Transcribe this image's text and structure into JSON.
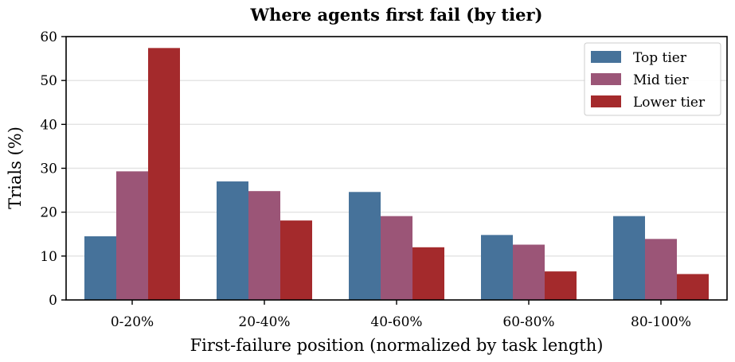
{
  "chart_data": {
    "type": "bar",
    "title": "Where agents first fail (by tier)",
    "xlabel": "First-failure position (normalized by task length)",
    "ylabel": "Trials (%)",
    "categories": [
      "0-20%",
      "20-40%",
      "40-60%",
      "60-80%",
      "80-100%"
    ],
    "series": [
      {
        "name": "Top tier",
        "color": "#46729a",
        "values": [
          14.5,
          27.0,
          24.6,
          14.8,
          19.1
        ]
      },
      {
        "name": "Mid tier",
        "color": "#9b5577",
        "values": [
          29.3,
          24.8,
          19.1,
          12.6,
          13.9
        ]
      },
      {
        "name": "Lower tier",
        "color": "#a42a2c",
        "values": [
          57.4,
          18.1,
          12.0,
          6.5,
          5.9
        ]
      }
    ],
    "ylim": [
      0,
      60
    ],
    "yticks": [
      "0",
      "10",
      "20",
      "30",
      "40",
      "50",
      "60"
    ],
    "grid": "horizontal",
    "legend_position": "top-right"
  }
}
